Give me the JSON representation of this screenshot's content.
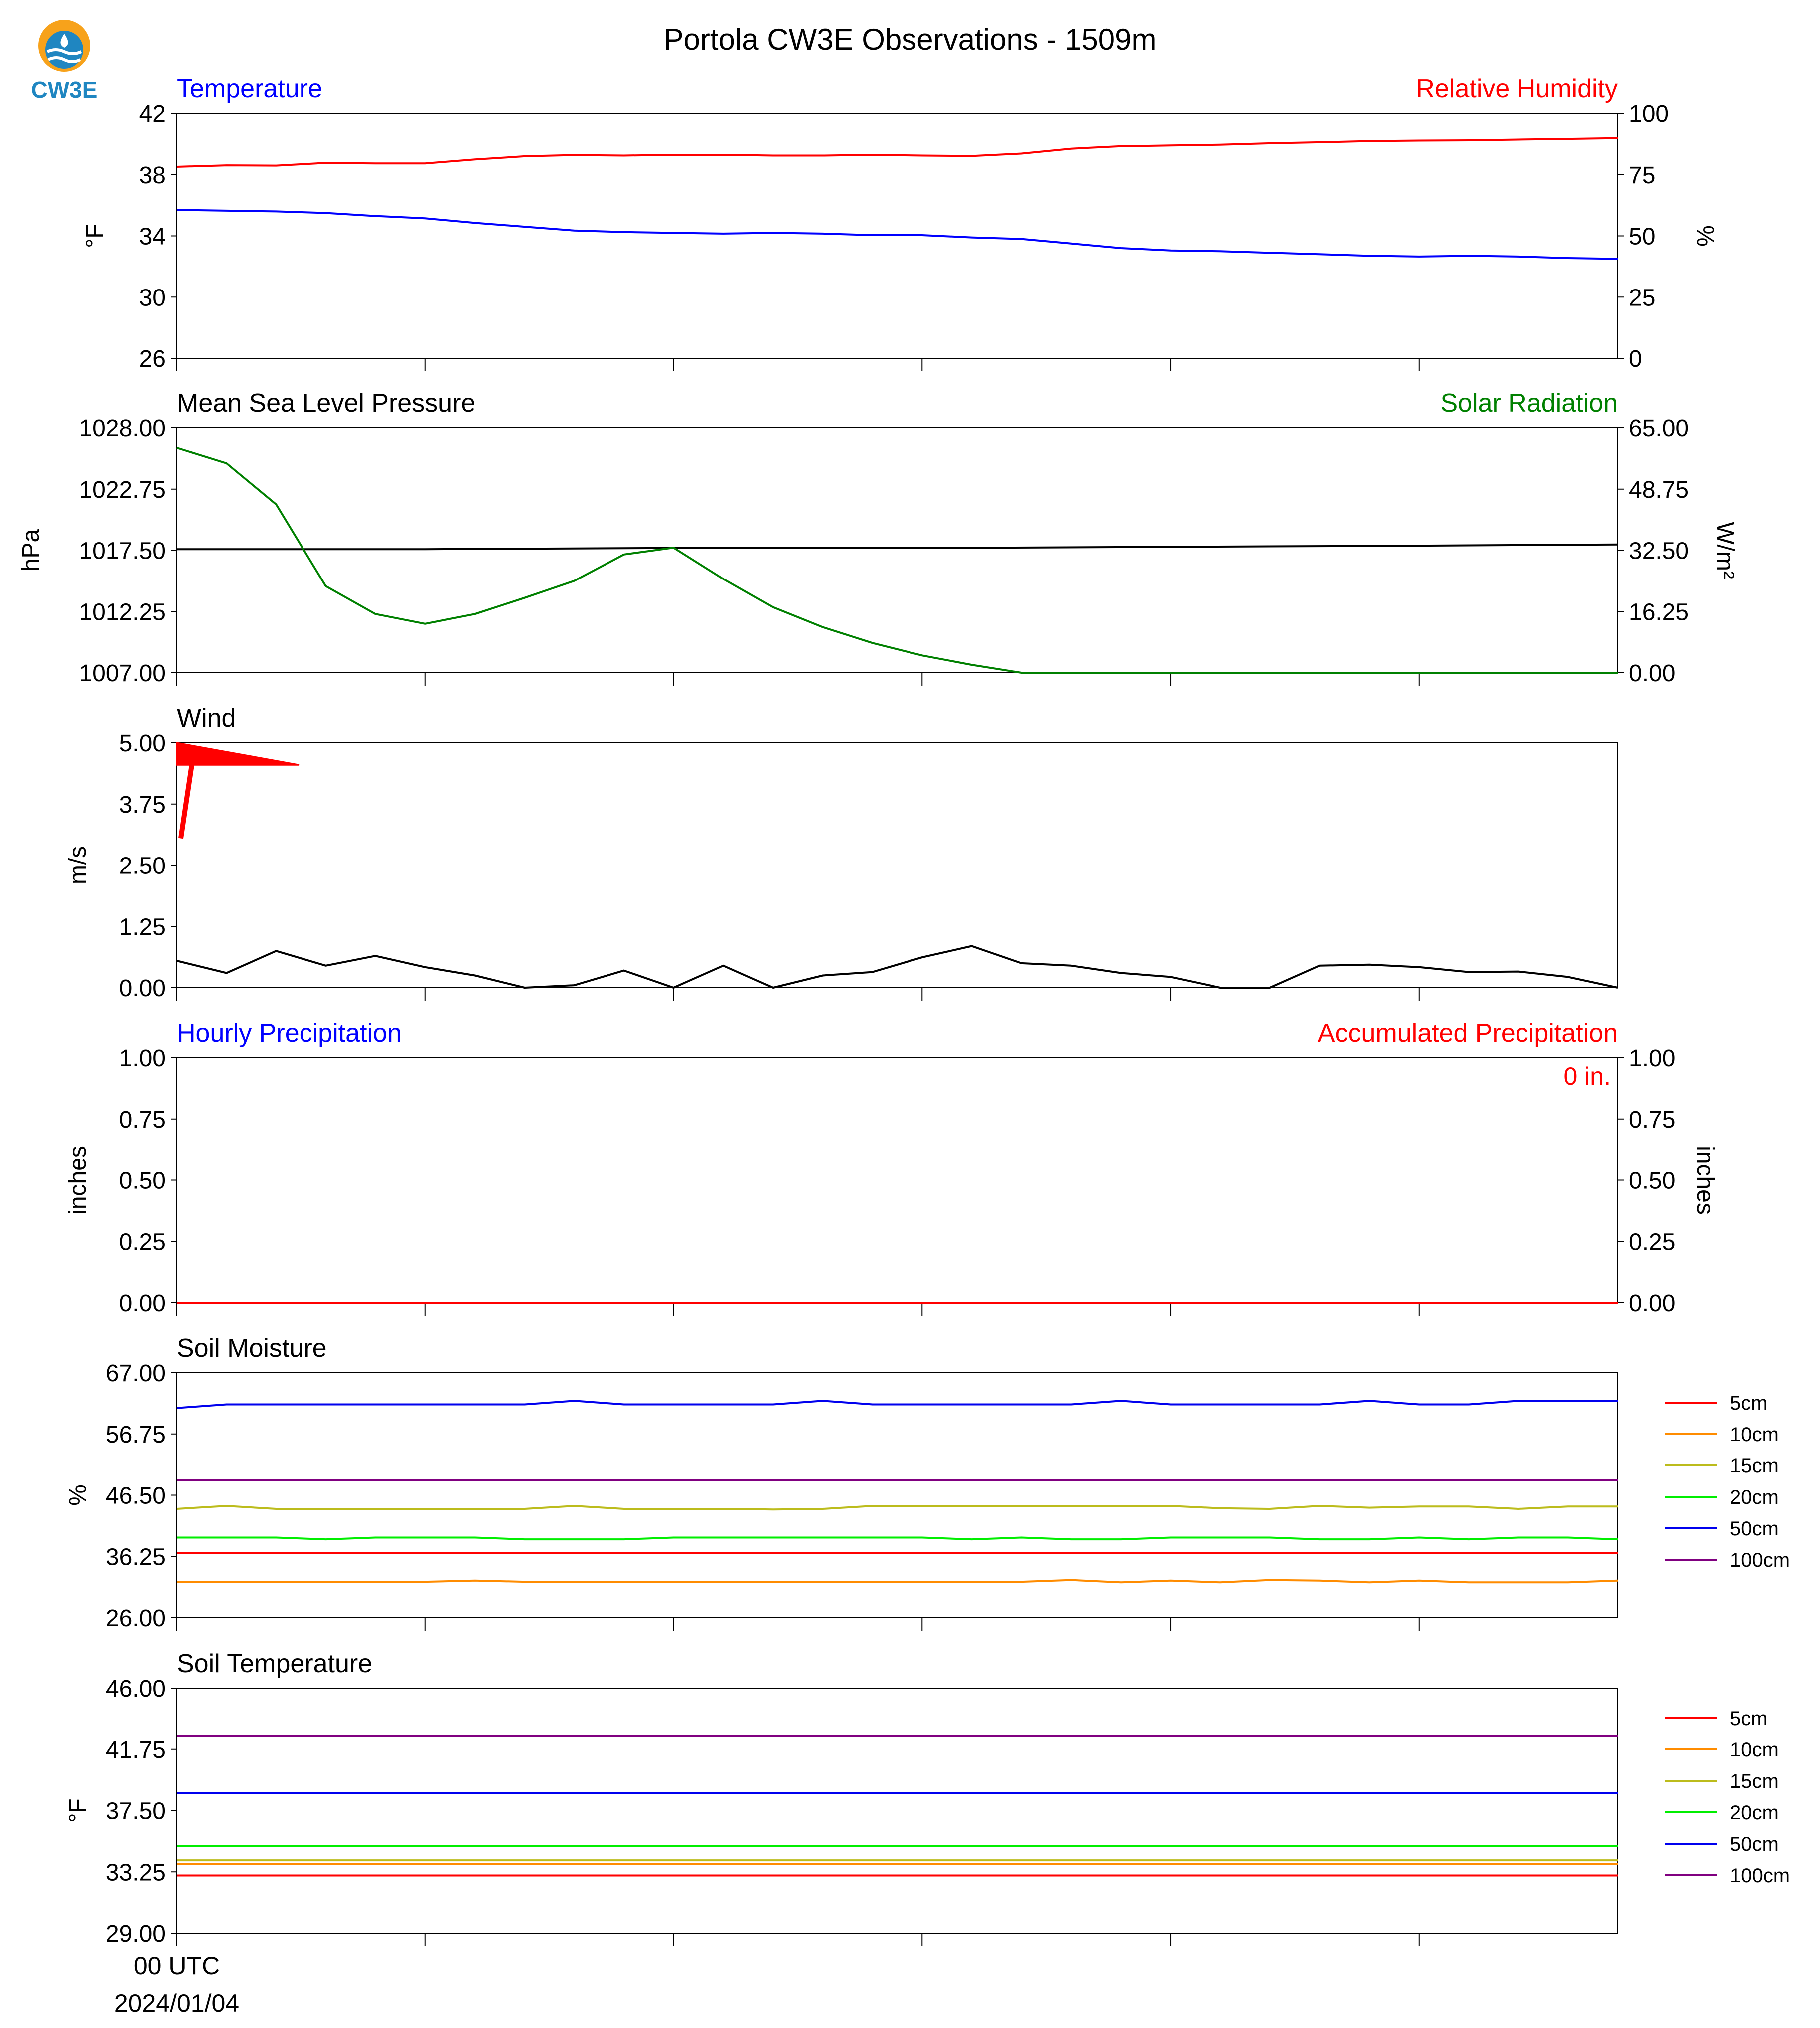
{
  "page": {
    "title": "Portola CW3E Observations - 1509m",
    "logo_text": "CW3E",
    "x_tick_label_line1": "00 UTC",
    "x_tick_label_line2": "2024/01/04"
  },
  "colors": {
    "temperature": "#0000ff",
    "relative_humidity": "#ff0000",
    "pressure": "#000000",
    "solar": "#008000",
    "wind": "#000000",
    "wind_barb": "#ff0000",
    "accumulated_precip": "#ff0000",
    "hourly_precip": "#0000ff",
    "depth_5cm": "#ff0000",
    "depth_10cm": "#ff8c00",
    "depth_15cm": "#bcbc1c",
    "depth_20cm": "#00ee00",
    "depth_50cm": "#0000ee",
    "depth_100cm": "#800080",
    "logo_orange": "#f7a21b",
    "logo_blue": "#1f86c1"
  },
  "chart_data": [
    {
      "type": "line",
      "id": "temp_rh",
      "title_left": "Temperature",
      "title_right": "Relative Humidity",
      "ylabel_left": "°F",
      "ylabel_right": "%",
      "ylim_left": [
        26,
        42
      ],
      "ylim_right": [
        0,
        100
      ],
      "yticks_left": [
        "42",
        "38",
        "34",
        "30",
        "26"
      ],
      "yticks_right": [
        "100",
        "75",
        "50",
        "25",
        "0"
      ],
      "xlim": [
        0,
        29
      ],
      "series": [
        {
          "axis": "left",
          "color_key": "temperature",
          "x": [
            0,
            1,
            2,
            3,
            4,
            5,
            6,
            7,
            8,
            9,
            10,
            11,
            12,
            13,
            14,
            15,
            16,
            17,
            18,
            19,
            20,
            21,
            22,
            23,
            24,
            25,
            26,
            27,
            28,
            29
          ],
          "values": [
            35.7,
            35.65,
            35.6,
            35.5,
            35.3,
            35.15,
            34.85,
            34.6,
            34.35,
            34.25,
            34.2,
            34.15,
            34.2,
            34.15,
            34.05,
            34.05,
            33.9,
            33.8,
            33.5,
            33.2,
            33.05,
            33.0,
            32.9,
            32.8,
            32.7,
            32.65,
            32.7,
            32.65,
            32.55,
            32.5
          ]
        },
        {
          "axis": "right",
          "color_key": "relative_humidity",
          "x": [
            0,
            1,
            2,
            3,
            4,
            5,
            6,
            7,
            8,
            9,
            10,
            11,
            12,
            13,
            14,
            15,
            16,
            17,
            18,
            19,
            20,
            21,
            22,
            23,
            24,
            25,
            26,
            27,
            28,
            29
          ],
          "values": [
            78.2,
            78.8,
            78.7,
            79.8,
            79.6,
            79.6,
            81.2,
            82.5,
            83.0,
            82.8,
            83.1,
            83.1,
            82.8,
            82.8,
            83.1,
            82.8,
            82.6,
            83.6,
            85.6,
            86.6,
            86.9,
            87.2,
            87.8,
            88.2,
            88.7,
            88.9,
            89.0,
            89.3,
            89.6,
            89.9
          ]
        }
      ]
    },
    {
      "type": "line",
      "id": "pressure_solar",
      "title_left": "Mean Sea Level Pressure",
      "title_right": "Solar Radiation",
      "ylabel_left": "hPa",
      "ylabel_right": "W/m²",
      "ylim_left": [
        1007,
        1028
      ],
      "ylim_right": [
        0,
        65
      ],
      "yticks_left": [
        "1028.00",
        "1022.75",
        "1017.50",
        "1012.25",
        "1007.00"
      ],
      "yticks_right": [
        "65.00",
        "48.75",
        "32.50",
        "16.25",
        "0.00"
      ],
      "xlim": [
        0,
        29
      ],
      "series": [
        {
          "axis": "left",
          "color_key": "pressure",
          "x": [
            0,
            5,
            10,
            15,
            20,
            25,
            29
          ],
          "values": [
            1017.6,
            1017.6,
            1017.7,
            1017.7,
            1017.8,
            1017.9,
            1018.0
          ]
        },
        {
          "axis": "right",
          "color_key": "solar",
          "x": [
            0,
            1,
            2,
            3,
            4,
            5,
            6,
            7,
            8,
            9,
            10,
            11,
            12,
            13,
            14,
            15,
            16,
            17,
            18,
            19,
            20,
            21,
            22,
            23,
            24,
            25,
            26,
            27,
            28,
            29
          ],
          "values": [
            59.7,
            55.6,
            44.7,
            23.0,
            15.6,
            13.0,
            15.6,
            19.9,
            24.4,
            31.4,
            33.2,
            24.9,
            17.4,
            12.1,
            7.9,
            4.6,
            2.1,
            0,
            0,
            0,
            0,
            0,
            0,
            0,
            0,
            0,
            0,
            0,
            0,
            0
          ]
        }
      ]
    },
    {
      "type": "line",
      "id": "wind",
      "title_left": "Wind",
      "ylabel_left": "m/s",
      "ylim_left": [
        0,
        5
      ],
      "yticks_left": [
        "5.00",
        "3.75",
        "2.50",
        "1.25",
        "0.00"
      ],
      "xlim": [
        0,
        29
      ],
      "series": [
        {
          "axis": "left",
          "color_key": "wind",
          "x": [
            0,
            1,
            2,
            3,
            4,
            5,
            6,
            7,
            8,
            9,
            10,
            11,
            12,
            13,
            14,
            15,
            16,
            17,
            18,
            19,
            20,
            21,
            22,
            23,
            24,
            25,
            26,
            27,
            28,
            29
          ],
          "values": [
            0.55,
            0.3,
            0.75,
            0.45,
            0.65,
            0.42,
            0.25,
            0.0,
            0.05,
            0.35,
            0.0,
            0.45,
            0.0,
            0.25,
            0.32,
            0.62,
            0.85,
            0.5,
            0.45,
            0.3,
            0.22,
            0.0,
            0.0,
            0.45,
            0.47,
            0.42,
            0.32,
            0.33,
            0.22,
            0.0
          ]
        }
      ]
    },
    {
      "type": "line",
      "id": "precip",
      "title_left": "Hourly Precipitation",
      "title_right": "Accumulated Precipitation",
      "ylabel_left": "inches",
      "ylabel_right": "inches",
      "ylim_left": [
        0,
        1
      ],
      "ylim_right": [
        0,
        1
      ],
      "yticks_left": [
        "1.00",
        "0.75",
        "0.50",
        "0.25",
        "0.00"
      ],
      "yticks_right": [
        "1.00",
        "0.75",
        "0.50",
        "0.25",
        "0.00"
      ],
      "annotation": "0 in.",
      "xlim": [
        0,
        29
      ],
      "series": [
        {
          "axis": "left",
          "color_key": "hourly_precip",
          "x": [
            0,
            29
          ],
          "values": [
            0,
            0
          ]
        },
        {
          "axis": "right",
          "color_key": "accumulated_precip",
          "x": [
            0,
            29
          ],
          "values": [
            0,
            0
          ]
        }
      ]
    },
    {
      "type": "line",
      "id": "soil_moisture",
      "title_left": "Soil Moisture",
      "ylabel_left": "%",
      "ylim_left": [
        26,
        67
      ],
      "yticks_left": [
        "67.00",
        "56.75",
        "46.50",
        "36.25",
        "26.00"
      ],
      "xlim": [
        0,
        29
      ],
      "series": [
        {
          "name": "5cm",
          "color_key": "depth_5cm",
          "x": [
            0,
            29
          ],
          "values": [
            36.8,
            36.8
          ]
        },
        {
          "name": "10cm",
          "color_key": "depth_10cm",
          "x": [
            0,
            1,
            2,
            3,
            4,
            5,
            6,
            7,
            8,
            9,
            10,
            11,
            12,
            13,
            14,
            15,
            16,
            17,
            18,
            19,
            20,
            21,
            22,
            23,
            24,
            25,
            26,
            27,
            28,
            29
          ],
          "values": [
            32.0,
            32.0,
            32.0,
            32.0,
            32.0,
            32.0,
            32.2,
            32.0,
            32.0,
            32.0,
            32.0,
            32.0,
            32.0,
            32.0,
            32.0,
            32.0,
            32.0,
            32.0,
            32.3,
            31.9,
            32.2,
            31.9,
            32.3,
            32.2,
            31.9,
            32.2,
            31.9,
            31.9,
            31.9,
            32.2
          ]
        },
        {
          "name": "15cm",
          "color_key": "depth_15cm",
          "x": [
            0,
            1,
            2,
            3,
            4,
            5,
            6,
            7,
            8,
            9,
            10,
            11,
            12,
            13,
            14,
            15,
            16,
            17,
            18,
            19,
            20,
            21,
            22,
            23,
            24,
            25,
            26,
            27,
            28,
            29
          ],
          "values": [
            44.2,
            44.7,
            44.2,
            44.2,
            44.2,
            44.2,
            44.2,
            44.2,
            44.7,
            44.2,
            44.2,
            44.2,
            44.1,
            44.2,
            44.7,
            44.7,
            44.7,
            44.7,
            44.7,
            44.7,
            44.7,
            44.3,
            44.2,
            44.7,
            44.4,
            44.6,
            44.6,
            44.2,
            44.6,
            44.6
          ]
        },
        {
          "name": "20cm",
          "color_key": "depth_20cm",
          "x": [
            0,
            1,
            2,
            3,
            4,
            5,
            6,
            7,
            8,
            9,
            10,
            11,
            12,
            13,
            14,
            15,
            16,
            17,
            18,
            19,
            20,
            21,
            22,
            23,
            24,
            25,
            26,
            27,
            28,
            29
          ],
          "values": [
            39.4,
            39.4,
            39.4,
            39.1,
            39.4,
            39.4,
            39.4,
            39.1,
            39.1,
            39.1,
            39.4,
            39.4,
            39.4,
            39.4,
            39.4,
            39.4,
            39.1,
            39.4,
            39.1,
            39.1,
            39.4,
            39.4,
            39.4,
            39.1,
            39.1,
            39.4,
            39.1,
            39.4,
            39.4,
            39.1
          ]
        },
        {
          "name": "50cm",
          "color_key": "depth_50cm",
          "x": [
            0,
            1,
            2,
            3,
            4,
            5,
            6,
            7,
            8,
            9,
            10,
            11,
            12,
            13,
            14,
            15,
            16,
            17,
            18,
            19,
            20,
            21,
            22,
            23,
            24,
            25,
            26,
            27,
            28,
            29
          ],
          "values": [
            61.1,
            61.7,
            61.7,
            61.7,
            61.7,
            61.7,
            61.7,
            61.7,
            62.3,
            61.7,
            61.7,
            61.7,
            61.7,
            62.3,
            61.7,
            61.7,
            61.7,
            61.7,
            61.7,
            62.3,
            61.7,
            61.7,
            61.7,
            61.7,
            62.3,
            61.7,
            61.7,
            62.3,
            62.3,
            62.3
          ]
        },
        {
          "name": "100cm",
          "color_key": "depth_100cm",
          "x": [
            0,
            29
          ],
          "values": [
            49.0,
            49.0
          ]
        }
      ]
    },
    {
      "type": "line",
      "id": "soil_temperature",
      "title_left": "Soil Temperature",
      "ylabel_left": "°F",
      "ylim_left": [
        29,
        46
      ],
      "yticks_left": [
        "46.00",
        "41.75",
        "37.50",
        "33.25",
        "29.00"
      ],
      "xlim": [
        0,
        29
      ],
      "series": [
        {
          "name": "5cm",
          "color_key": "depth_5cm",
          "x": [
            0,
            29
          ],
          "values": [
            33.0,
            33.0
          ]
        },
        {
          "name": "10cm",
          "color_key": "depth_10cm",
          "x": [
            0,
            29
          ],
          "values": [
            33.8,
            33.8
          ]
        },
        {
          "name": "15cm",
          "color_key": "depth_15cm",
          "x": [
            0,
            29
          ],
          "values": [
            34.05,
            34.05
          ]
        },
        {
          "name": "20cm",
          "color_key": "depth_20cm",
          "x": [
            0,
            29
          ],
          "values": [
            35.05,
            35.05
          ]
        },
        {
          "name": "50cm",
          "color_key": "depth_50cm",
          "x": [
            0,
            29
          ],
          "values": [
            38.7,
            38.7
          ]
        },
        {
          "name": "100cm",
          "color_key": "depth_100cm",
          "x": [
            0,
            29
          ],
          "values": [
            42.7,
            42.7
          ]
        }
      ]
    }
  ],
  "wind_barb": {
    "x": 0,
    "speed_note": "pennant",
    "color_key": "wind_barb"
  },
  "x_axis": {
    "xlim": [
      0,
      29
    ],
    "major_ticks": [
      0,
      5,
      10,
      15,
      20,
      25
    ]
  }
}
